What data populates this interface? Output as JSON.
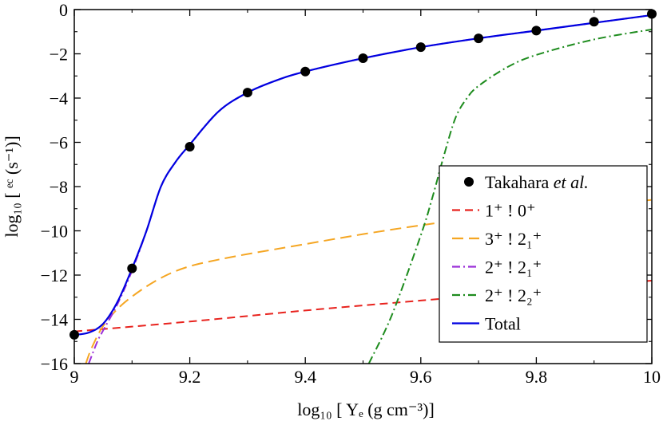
{
  "chart_data": {
    "type": "line",
    "title": "",
    "xlabel": "log₁₀ [  Yₑ (g cm⁻³)]",
    "ylabel": "log₁₀ [   ᵉᶜ (s⁻¹)]",
    "xlim": [
      9,
      10
    ],
    "ylim": [
      -16,
      0
    ],
    "x_ticks": [
      9,
      9.2,
      9.4,
      9.6,
      9.8,
      10
    ],
    "x_tick_labels": [
      "9",
      "9.2",
      "9.4",
      "9.6",
      "9.8",
      "10"
    ],
    "y_ticks": [
      0,
      -2,
      -4,
      -6,
      -8,
      -10,
      -12,
      -14,
      -16
    ],
    "y_tick_labels": [
      "0",
      "−2",
      "−4",
      "−6",
      "−8",
      "−10",
      "−12",
      "−14",
      "−16"
    ],
    "grid": false,
    "legend_position": "lower-right",
    "series": [
      {
        "name": "Takahara et al.",
        "style": "points",
        "color": "#000000",
        "x": [
          9.0,
          9.1,
          9.2,
          9.3,
          9.4,
          9.5,
          9.6,
          9.7,
          9.8,
          9.9,
          10.0
        ],
        "y": [
          -14.7,
          -11.7,
          -6.2,
          -3.75,
          -2.8,
          -2.2,
          -1.7,
          -1.3,
          -0.95,
          -0.55,
          -0.2
        ]
      },
      {
        "name": "1⁺ ! 0⁺",
        "style": "dashed",
        "color": "#e8231e",
        "x": [
          9.0,
          9.2,
          9.4,
          9.6,
          9.8,
          10.0
        ],
        "y": [
          -14.55,
          -14.1,
          -13.6,
          -13.15,
          -12.7,
          -12.25
        ]
      },
      {
        "name": "3⁺ ! 2₁⁺",
        "style": "longdash",
        "color": "#f5a623",
        "x": [
          9.02,
          9.03,
          9.05,
          9.08,
          9.12,
          9.16,
          9.2,
          9.25,
          9.3,
          9.4,
          9.5,
          9.6,
          9.7,
          9.8,
          9.9,
          10.0
        ],
        "y": [
          -16,
          -15.3,
          -14.3,
          -13.4,
          -12.6,
          -12.0,
          -11.6,
          -11.3,
          -11.05,
          -10.6,
          -10.15,
          -9.75,
          -9.4,
          -9.1,
          -8.85,
          -8.6
        ]
      },
      {
        "name": "2⁺ ! 2₁⁺",
        "style": "dashdot",
        "color": "#9b30d8",
        "x": [
          9.025,
          9.04,
          9.05,
          9.075,
          9.1,
          9.125,
          9.15,
          9.175,
          9.2,
          9.25,
          9.3,
          9.35,
          9.4,
          9.5,
          9.6,
          9.7,
          9.8,
          9.9,
          10.0
        ],
        "y": [
          -16,
          -15.0,
          -14.5,
          -13.3,
          -11.8,
          -10.0,
          -8.0,
          -6.9,
          -6.1,
          -4.6,
          -3.75,
          -3.2,
          -2.8,
          -2.2,
          -1.7,
          -1.3,
          -0.95,
          -0.6,
          -0.25
        ]
      },
      {
        "name": "2⁺ ! 2₂⁺",
        "style": "dashdot",
        "color": "#1e8c1e",
        "x": [
          9.51,
          9.55,
          9.6,
          9.62,
          9.64,
          9.66,
          9.68,
          9.7,
          9.75,
          9.8,
          9.9,
          10.0
        ],
        "y": [
          -16,
          -13.8,
          -10.2,
          -8.5,
          -6.6,
          -4.9,
          -4.0,
          -3.45,
          -2.6,
          -2.05,
          -1.35,
          -0.9
        ]
      },
      {
        "name": "Total",
        "style": "solid",
        "color": "#0000e0",
        "x": [
          9.0,
          9.025,
          9.05,
          9.075,
          9.1,
          9.125,
          9.15,
          9.175,
          9.2,
          9.25,
          9.3,
          9.35,
          9.4,
          9.5,
          9.6,
          9.7,
          9.8,
          9.9,
          10.0
        ],
        "y": [
          -14.7,
          -14.6,
          -14.2,
          -13.2,
          -11.7,
          -10.0,
          -8.0,
          -6.9,
          -6.1,
          -4.6,
          -3.75,
          -3.2,
          -2.8,
          -2.2,
          -1.7,
          -1.3,
          -0.95,
          -0.6,
          -0.25
        ]
      }
    ],
    "legend": [
      {
        "text": "Takahara ",
        "italic": "et al.",
        "series": 0
      },
      {
        "text": "1⁺  !  0⁺",
        "series": 1
      },
      {
        "text": "3⁺  !  2₁⁺",
        "series": 2
      },
      {
        "text": "2⁺  !  2₁⁺",
        "series": 3
      },
      {
        "text": "2⁺  !  2₂⁺",
        "series": 4
      },
      {
        "text": "Total",
        "series": 5
      }
    ]
  }
}
